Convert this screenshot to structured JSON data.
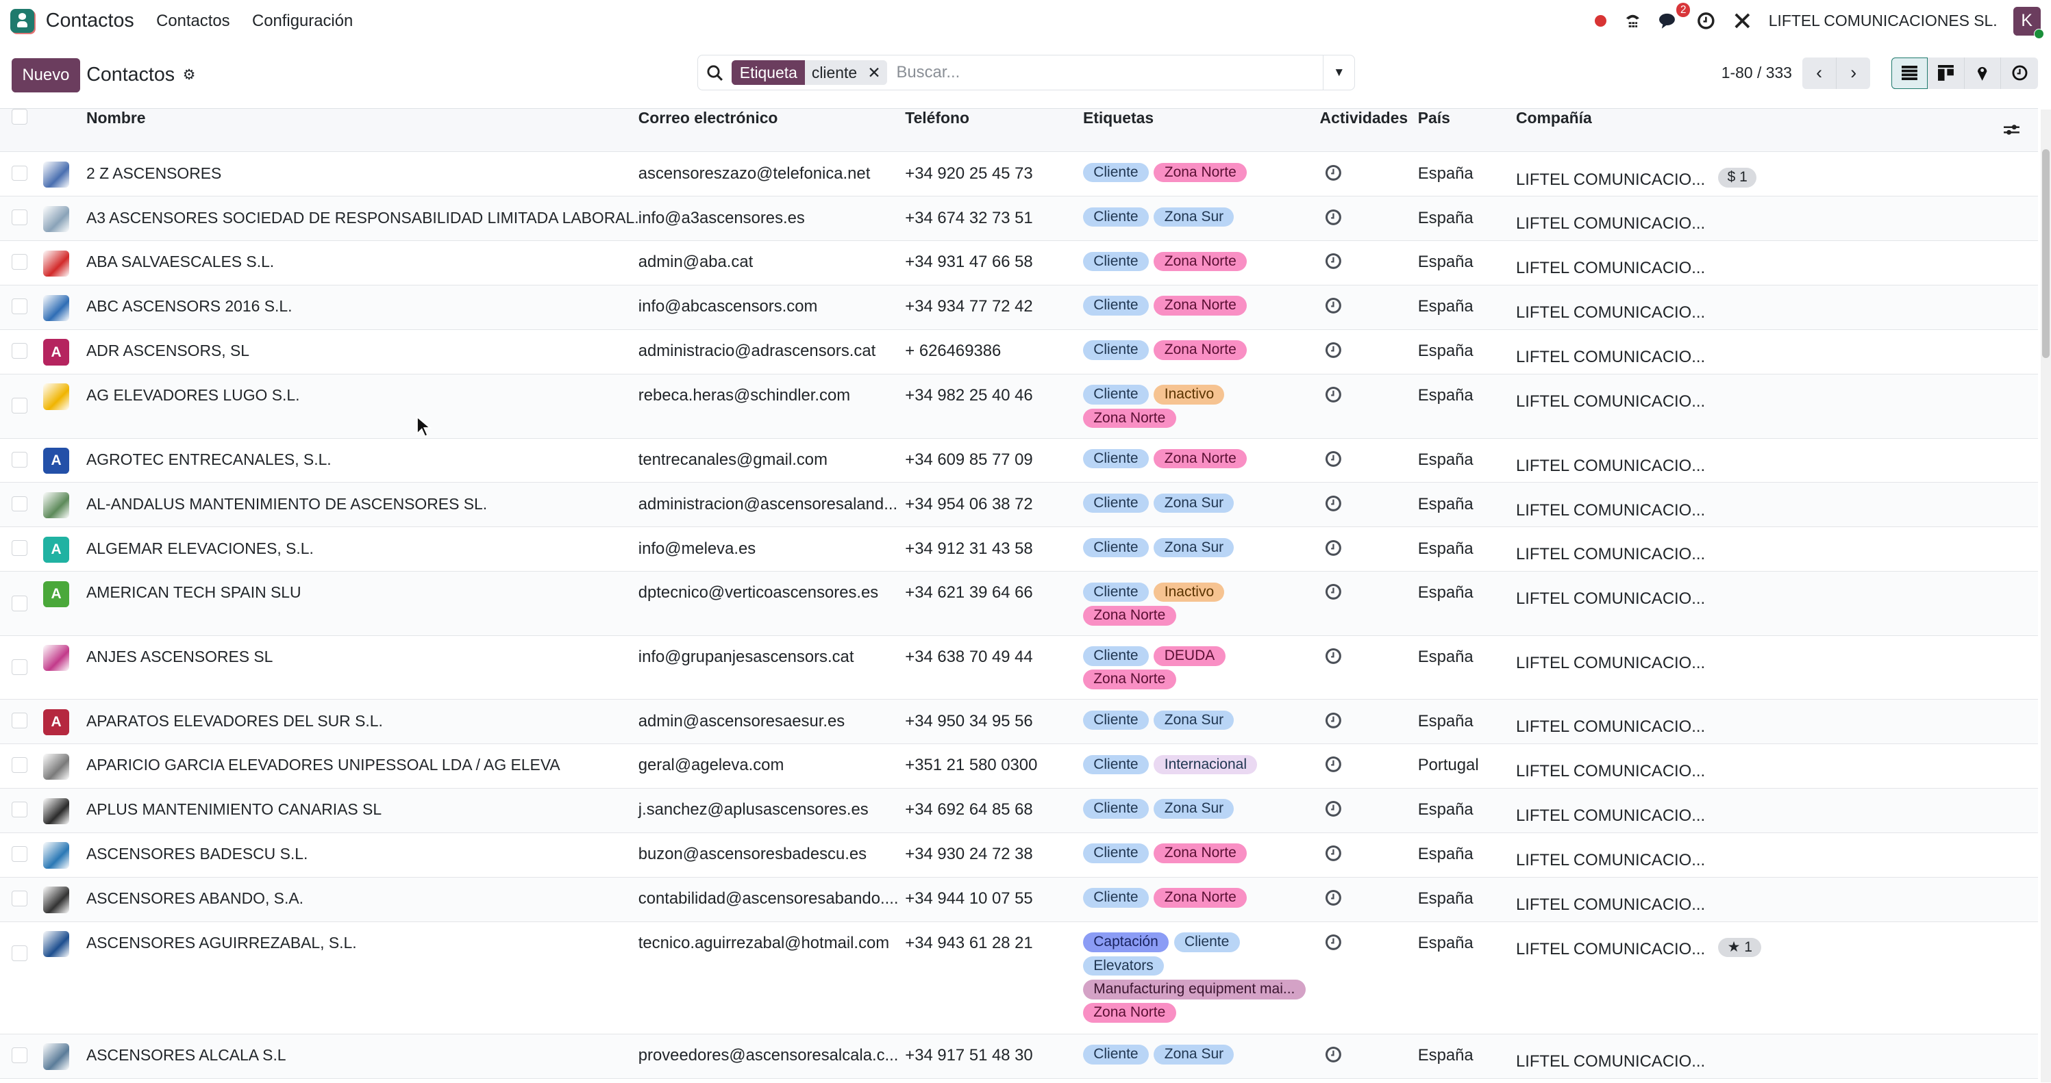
{
  "topbar": {
    "app_name": "Contactos",
    "menu": [
      "Contactos",
      "Configuración"
    ],
    "company": "LIFTEL COMUNICACIONES SL.",
    "avatar_letter": "K",
    "messages_count": "2"
  },
  "control": {
    "new_label": "Nuevo",
    "title": "Contactos",
    "facet_label": "Etiqueta",
    "facet_value": "cliente",
    "search_placeholder": "Buscar...",
    "pager": "1-80 / 333"
  },
  "columns": [
    "Nombre",
    "Correo electrónico",
    "Teléfono",
    "Etiquetas",
    "Actividades",
    "País",
    "Compañía"
  ],
  "tag_colors": {
    "Cliente": "#b9d5f6",
    "Zona Norte": "#f98fc4",
    "Zona Sur": "#b9d5f6",
    "Inactivo": "#f6c391",
    "DEUDA": "#f98fc4",
    "Internacional": "#ead9f2",
    "Captación": "#8b9cf5",
    "Elevators": "#b9d5f6",
    "Manufacturing equipment mai...": "#d4a2c6"
  },
  "rows": [
    {
      "name": "2 Z ASCENSORES",
      "email": "ascensoreszazo@telefonica.net",
      "phone": "+34 920 25 45 73",
      "tags": [
        "Cliente",
        "Zona Norte"
      ],
      "country": "España",
      "company": "LIFTEL COMUNICACIO...",
      "badge": "$ 1",
      "avatar": {
        "type": "logo",
        "color": "#4a6fb0"
      }
    },
    {
      "name": "A3 ASCENSORES SOCIEDAD DE RESPONSABILIDAD LIMITADA LABORAL.",
      "email": "info@a3ascensores.es",
      "phone": "+34 674 32 73 51",
      "tags": [
        "Cliente",
        "Zona Sur"
      ],
      "country": "España",
      "company": "LIFTEL COMUNICACIO...",
      "avatar": {
        "type": "logo",
        "color": "#8aa3b8"
      }
    },
    {
      "name": "ABA SALVAESCALES S.L.",
      "email": "admin@aba.cat",
      "phone": "+34 931 47 66 58",
      "tags": [
        "Cliente",
        "Zona Norte"
      ],
      "country": "España",
      "company": "LIFTEL COMUNICACIO...",
      "avatar": {
        "type": "logo",
        "color": "#d22a2a"
      }
    },
    {
      "name": "ABC ASCENSORS 2016 S.L.",
      "email": "info@abcascensors.com",
      "phone": "+34 934 77 72 42",
      "tags": [
        "Cliente",
        "Zona Norte"
      ],
      "country": "España",
      "company": "LIFTEL COMUNICACIO...",
      "avatar": {
        "type": "logo",
        "color": "#2f6db5"
      }
    },
    {
      "name": "ADR ASCENSORS, SL",
      "email": "administracio@adrascensors.cat",
      "phone": "+ 626469386",
      "tags": [
        "Cliente",
        "Zona Norte"
      ],
      "country": "España",
      "company": "LIFTEL COMUNICACIO...",
      "avatar": {
        "type": "letter",
        "letter": "A",
        "color": "#b5245f"
      }
    },
    {
      "name": "AG ELEVADORES LUGO S.L.",
      "email": "rebeca.heras@schindler.com",
      "phone": "+34 982 25 40 46",
      "tags": [
        "Cliente",
        "Inactivo",
        "Zona Norte"
      ],
      "country": "España",
      "company": "LIFTEL COMUNICACIO...",
      "avatar": {
        "type": "logo",
        "color": "#f0b400"
      }
    },
    {
      "name": "AGROTEC ENTRECANALES, S.L.",
      "email": "tentrecanales@gmail.com",
      "phone": "+34 609 85 77 09",
      "tags": [
        "Cliente",
        "Zona Norte"
      ],
      "country": "España",
      "company": "LIFTEL COMUNICACIO...",
      "avatar": {
        "type": "letter",
        "letter": "A",
        "color": "#2350a8"
      }
    },
    {
      "name": "AL-ANDALUS MANTENIMIENTO DE ASCENSORES SL.",
      "email": "administracion@ascensoresaland...",
      "phone": "+34 954 06 38 72",
      "tags": [
        "Cliente",
        "Zona Sur"
      ],
      "country": "España",
      "company": "LIFTEL COMUNICACIO...",
      "avatar": {
        "type": "logo",
        "color": "#5d8a5a"
      }
    },
    {
      "name": "ALGEMAR ELEVACIONES, S.L.",
      "email": "info@meleva.es",
      "phone": "+34 912 31 43 58",
      "tags": [
        "Cliente",
        "Zona Sur"
      ],
      "country": "España",
      "company": "LIFTEL COMUNICACIO...",
      "avatar": {
        "type": "letter",
        "letter": "A",
        "color": "#20b2a2"
      }
    },
    {
      "name": "AMERICAN TECH SPAIN SLU",
      "email": "dptecnico@verticoascensores.es",
      "phone": "+34 621 39 64 66",
      "tags": [
        "Cliente",
        "Inactivo",
        "Zona Norte"
      ],
      "country": "España",
      "company": "LIFTEL COMUNICACIO...",
      "avatar": {
        "type": "letter",
        "letter": "A",
        "color": "#4aa83a"
      }
    },
    {
      "name": "ANJES ASCENSORES SL",
      "email": "info@grupanjesascensors.cat",
      "phone": "+34 638 70 49 44",
      "tags": [
        "Cliente",
        "DEUDA",
        "Zona Norte"
      ],
      "country": "España",
      "company": "LIFTEL COMUNICACIO...",
      "avatar": {
        "type": "logo",
        "color": "#c23a8a"
      }
    },
    {
      "name": "APARATOS ELEVADORES DEL SUR S.L.",
      "email": "admin@ascensoresaesur.es",
      "phone": "+34 950 34 95 56",
      "tags": [
        "Cliente",
        "Zona Sur"
      ],
      "country": "España",
      "company": "LIFTEL COMUNICACIO...",
      "avatar": {
        "type": "letter",
        "letter": "A",
        "color": "#b5283f"
      }
    },
    {
      "name": "APARICIO GARCIA ELEVADORES UNIPESSOAL LDA / AG ELEVA",
      "email": "geral@ageleva.com",
      "phone": "+351 21 580 0300",
      "tags": [
        "Cliente",
        "Internacional"
      ],
      "country": "Portugal",
      "company": "LIFTEL COMUNICACIO...",
      "avatar": {
        "type": "logo",
        "color": "#7a7a7a"
      }
    },
    {
      "name": "APLUS MANTENIMIENTO CANARIAS SL",
      "email": "j.sanchez@aplusascensores.es",
      "phone": "+34 692 64 85 68",
      "tags": [
        "Cliente",
        "Zona Sur"
      ],
      "country": "España",
      "company": "LIFTEL COMUNICACIO...",
      "avatar": {
        "type": "logo",
        "color": "#2b2b2b"
      }
    },
    {
      "name": "ASCENSORES BADESCU S.L.",
      "email": "buzon@ascensoresbadescu.es",
      "phone": "+34 930 24 72 38",
      "tags": [
        "Cliente",
        "Zona Norte"
      ],
      "country": "España",
      "company": "LIFTEL COMUNICACIO...",
      "avatar": {
        "type": "logo",
        "color": "#2a78b5"
      }
    },
    {
      "name": "ASCENSORES ABANDO, S.A.",
      "email": "contabilidad@ascensoresabando....",
      "phone": "+34 944 10 07 55",
      "tags": [
        "Cliente",
        "Zona Norte"
      ],
      "country": "España",
      "company": "LIFTEL COMUNICACIO...",
      "avatar": {
        "type": "logo",
        "color": "#333333"
      }
    },
    {
      "name": "ASCENSORES AGUIRREZABAL, S.L.",
      "email": "tecnico.aguirrezabal@hotmail.com",
      "phone": "+34 943 61 28 21",
      "tags": [
        "Captación",
        "Cliente",
        "Elevators",
        "Manufacturing equipment mai...",
        "Zona Norte"
      ],
      "country": "España",
      "company": "LIFTEL COMUNICACIO...",
      "badge": "★ 1",
      "avatar": {
        "type": "logo",
        "color": "#1e4f8f"
      }
    },
    {
      "name": "ASCENSORES ALCALA S.L",
      "email": "proveedores@ascensoresalcala.c...",
      "phone": "+34 917 51 48 30",
      "tags": [
        "Cliente",
        "Zona Sur"
      ],
      "country": "España",
      "company": "LIFTEL COMUNICACIO...",
      "avatar": {
        "type": "logo",
        "color": "#5b7c99"
      }
    }
  ]
}
